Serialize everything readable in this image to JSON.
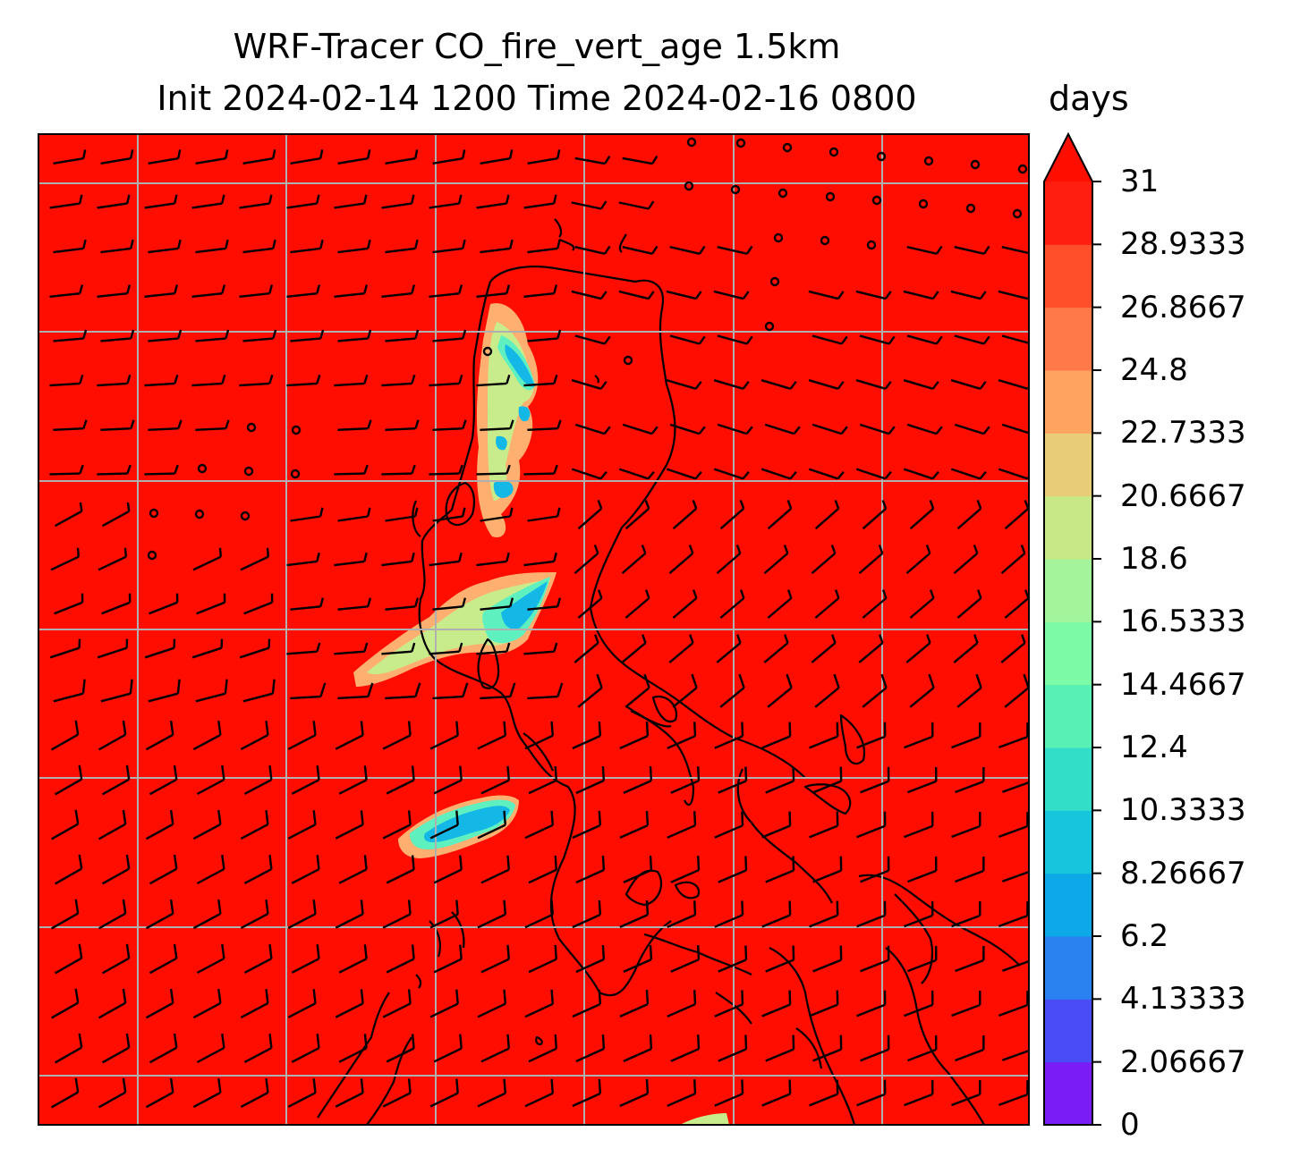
{
  "title_line1": "WRF-Tracer CO_fire_vert_age 1.5km",
  "title_line2": "Init 2024-02-14 1200 Time 2024-02-16 0800",
  "units": "days",
  "colorbar": {
    "min": 0,
    "max": 31,
    "extend": "max",
    "levels": [
      0,
      2.06667,
      4.13333,
      6.2,
      8.26667,
      10.3333,
      12.4,
      14.4667,
      16.5333,
      18.6,
      20.6667,
      22.7333,
      24.8,
      26.8667,
      28.9333,
      31
    ],
    "tick_labels": [
      "0",
      "2.06667",
      "4.13333",
      "6.2",
      "8.26667",
      "10.3333",
      "12.4",
      "14.4667",
      "16.5333",
      "18.6",
      "20.6667",
      "22.7333",
      "24.8",
      "26.8667",
      "28.9333",
      "31"
    ],
    "colors": [
      "#7a1cf5",
      "#4a4cf6",
      "#2a82f0",
      "#0ca8e8",
      "#17c6dc",
      "#33dec8",
      "#58f0b4",
      "#7cfaa6",
      "#a4f49c",
      "#c8e888",
      "#e8cc78",
      "#ffa460",
      "#ff7a48",
      "#ff4e2a",
      "#ff1e10"
    ],
    "extend_color": "#ff0f00"
  },
  "map": {
    "background_color": "#fe0d00",
    "gridline_color": "#b0b0b0",
    "coastline_color": "#000000",
    "barb_color": "#000000",
    "plume_colors": {
      "core": "#14b8e6",
      "inner": "#5ff0c0",
      "mid": "#c8ec8c",
      "outer": "#ffb070"
    }
  }
}
